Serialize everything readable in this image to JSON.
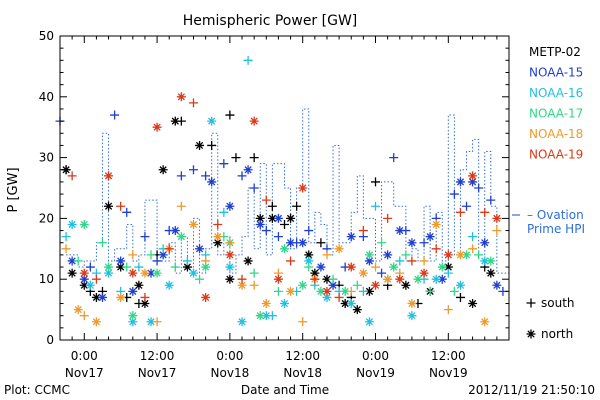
{
  "chart_data": {
    "type": "scatter",
    "title": "Hemispheric Power [GW]",
    "ylabel": "P [GW]",
    "xlabel": "Date and Time",
    "ylim": [
      0,
      50
    ],
    "y_ticks": [
      0,
      10,
      20,
      30,
      40,
      50
    ],
    "x_range_hours": [
      -4,
      70
    ],
    "x_ticks": [
      {
        "hour": 0,
        "time": "0:00",
        "day": "Nov17"
      },
      {
        "hour": 12,
        "time": "12:00",
        "day": "Nov17"
      },
      {
        "hour": 24,
        "time": "0:00",
        "day": "Nov18"
      },
      {
        "hour": 36,
        "time": "12:00",
        "day": "Nov18"
      },
      {
        "hour": 48,
        "time": "0:00",
        "day": "Nov19"
      },
      {
        "hour": 60,
        "time": "12:00",
        "day": "Nov19"
      }
    ],
    "footer_left": "Plot: CCMC",
    "footer_right": "2012/11/19 21:50:10",
    "legend_satellites": [
      {
        "name": "METP-02",
        "color": "#000000"
      },
      {
        "name": "NOAA-15",
        "color": "#1f3fd0"
      },
      {
        "name": "NOAA-16",
        "color": "#22c0e0"
      },
      {
        "name": "NOAA-17",
        "color": "#33d68a"
      },
      {
        "name": "NOAA-18",
        "color": "#f09a2a"
      },
      {
        "name": "NOAA-19",
        "color": "#d83a1a"
      }
    ],
    "ovation": {
      "label_line1": "– Ovation",
      "label_line2": "Prime HPI",
      "color": "#2f6fd8",
      "x": [
        -3,
        -1,
        0,
        2,
        3,
        4,
        5,
        7,
        8,
        9,
        10,
        12,
        13,
        14,
        15,
        16,
        17,
        18,
        19,
        20,
        21,
        22,
        23,
        24,
        25,
        26,
        27,
        28,
        29,
        30,
        31,
        32,
        33,
        34,
        35,
        36,
        37,
        38,
        39,
        40,
        41,
        42,
        43,
        44,
        45,
        46,
        47,
        48,
        49,
        50,
        51,
        52,
        53,
        54,
        55,
        56,
        57,
        58,
        59,
        60,
        61,
        62,
        63,
        64,
        65,
        66,
        67,
        68,
        69
      ],
      "y": [
        14,
        12,
        13,
        16,
        34,
        13,
        15,
        19,
        13,
        14,
        23,
        13,
        13,
        16,
        11,
        17,
        12,
        20,
        11,
        15,
        34,
        14,
        17,
        11,
        14,
        17,
        25,
        15,
        29,
        14,
        29,
        29,
        25,
        15,
        25,
        38,
        16,
        21,
        19,
        14,
        32,
        16,
        16,
        21,
        27,
        20,
        20,
        13,
        26,
        26,
        22,
        22,
        13,
        15,
        13,
        22,
        13,
        21,
        13,
        37,
        14,
        28,
        31,
        33,
        14,
        31,
        22,
        11,
        11
      ]
    },
    "marker_legend": [
      {
        "symbol": "+",
        "label": "south"
      },
      {
        "symbol": "*",
        "label": "north"
      }
    ],
    "series": [
      {
        "name": "METP-02",
        "color": "#000000",
        "south": [
          [
            -3,
            28
          ],
          [
            1,
            8
          ],
          [
            3,
            8
          ],
          [
            7,
            7
          ],
          [
            9,
            6
          ],
          [
            12,
            14
          ],
          [
            16,
            36
          ],
          [
            21,
            32
          ],
          [
            24,
            37
          ],
          [
            25,
            30
          ],
          [
            28,
            30
          ],
          [
            31,
            22
          ],
          [
            33,
            19
          ],
          [
            35,
            22
          ],
          [
            39,
            16
          ],
          [
            42,
            9
          ],
          [
            44,
            7
          ],
          [
            48,
            26
          ],
          [
            50,
            9
          ],
          [
            55,
            6
          ],
          [
            62,
            7
          ],
          [
            66,
            12
          ]
        ],
        "north": [
          [
            -3,
            28
          ],
          [
            -2,
            11
          ],
          [
            0,
            9
          ],
          [
            2,
            7
          ],
          [
            4,
            22
          ],
          [
            6,
            12
          ],
          [
            9,
            9
          ],
          [
            10,
            6
          ],
          [
            13,
            28
          ],
          [
            15,
            36
          ],
          [
            17,
            12
          ],
          [
            19,
            32
          ],
          [
            22,
            16
          ],
          [
            24,
            10
          ],
          [
            27,
            13
          ],
          [
            29,
            20
          ],
          [
            31,
            20
          ],
          [
            34,
            20
          ],
          [
            37,
            14
          ],
          [
            38,
            11
          ],
          [
            40,
            10
          ],
          [
            43,
            6
          ],
          [
            45,
            5
          ],
          [
            47,
            8
          ],
          [
            53,
            9
          ],
          [
            57,
            8
          ],
          [
            60,
            12
          ],
          [
            64,
            6
          ],
          [
            67,
            11
          ]
        ]
      },
      {
        "name": "NOAA-15",
        "color": "#1f3fd0",
        "south": [
          [
            -4,
            36
          ],
          [
            1,
            12
          ],
          [
            5,
            37
          ],
          [
            7,
            21
          ],
          [
            10,
            17
          ],
          [
            12,
            13
          ],
          [
            14,
            18
          ],
          [
            16,
            27
          ],
          [
            18,
            28
          ],
          [
            20,
            27
          ],
          [
            23,
            29
          ],
          [
            26,
            27
          ],
          [
            28,
            25
          ],
          [
            30,
            18
          ],
          [
            32,
            17
          ],
          [
            35,
            16
          ],
          [
            37,
            18
          ],
          [
            40,
            15
          ],
          [
            43,
            12
          ],
          [
            46,
            17
          ],
          [
            49,
            11
          ],
          [
            51,
            30
          ],
          [
            53,
            18
          ],
          [
            56,
            16
          ],
          [
            58,
            20
          ],
          [
            61,
            24
          ],
          [
            63,
            22
          ],
          [
            65,
            25
          ],
          [
            67,
            23
          ],
          [
            69,
            8
          ]
        ],
        "north": [
          [
            -2,
            13
          ],
          [
            0,
            10
          ],
          [
            3,
            7
          ],
          [
            6,
            13
          ],
          [
            8,
            8
          ],
          [
            11,
            11
          ],
          [
            13,
            14
          ],
          [
            15,
            18
          ],
          [
            19,
            15
          ],
          [
            21,
            26
          ],
          [
            24,
            22
          ],
          [
            27,
            28
          ],
          [
            29,
            19
          ],
          [
            32,
            20
          ],
          [
            34,
            16
          ],
          [
            36,
            16
          ],
          [
            39,
            12
          ],
          [
            41,
            9
          ],
          [
            44,
            17
          ],
          [
            47,
            13
          ],
          [
            50,
            14
          ],
          [
            52,
            18
          ],
          [
            54,
            16
          ],
          [
            57,
            17
          ],
          [
            59,
            10
          ],
          [
            62,
            26
          ],
          [
            64,
            26
          ],
          [
            66,
            16
          ],
          [
            68,
            9
          ]
        ]
      },
      {
        "name": "NOAA-16",
        "color": "#22c0e0",
        "south": [
          [
            -3,
            17
          ],
          [
            2,
            11
          ],
          [
            6,
            8
          ],
          [
            9,
            12
          ],
          [
            13,
            15
          ],
          [
            17,
            13
          ],
          [
            20,
            14
          ],
          [
            23,
            21
          ],
          [
            27,
            46
          ],
          [
            31,
            4
          ],
          [
            35,
            8
          ],
          [
            38,
            9
          ],
          [
            42,
            8
          ],
          [
            46,
            8
          ],
          [
            48,
            22
          ],
          [
            52,
            13
          ],
          [
            56,
            10
          ],
          [
            60,
            11
          ],
          [
            64,
            17
          ]
        ],
        "north": [
          [
            -2,
            19
          ],
          [
            1,
            9
          ],
          [
            4,
            11
          ],
          [
            8,
            3
          ],
          [
            11,
            3
          ],
          [
            14,
            9
          ],
          [
            18,
            11
          ],
          [
            21,
            36
          ],
          [
            24,
            12
          ],
          [
            26,
            3
          ],
          [
            30,
            4
          ],
          [
            33,
            6
          ],
          [
            37,
            13
          ],
          [
            40,
            7
          ],
          [
            44,
            6
          ],
          [
            47,
            3
          ],
          [
            50,
            10
          ],
          [
            54,
            4
          ],
          [
            58,
            10
          ],
          [
            62,
            9
          ],
          [
            66,
            13
          ]
        ]
      },
      {
        "name": "NOAA-17",
        "color": "#33d68a",
        "south": [
          [
            -1,
            13
          ],
          [
            3,
            16
          ],
          [
            7,
            12
          ],
          [
            11,
            14
          ],
          [
            15,
            12
          ],
          [
            19,
            10
          ],
          [
            23,
            17
          ],
          [
            28,
            11
          ],
          [
            32,
            8
          ],
          [
            37,
            12
          ],
          [
            41,
            10
          ],
          [
            45,
            9
          ],
          [
            49,
            16
          ],
          [
            53,
            14
          ],
          [
            57,
            8
          ],
          [
            61,
            8
          ],
          [
            65,
            14
          ]
        ],
        "north": [
          [
            0,
            19
          ],
          [
            4,
            12
          ],
          [
            8,
            4
          ],
          [
            12,
            11
          ],
          [
            16,
            17
          ],
          [
            20,
            12
          ],
          [
            24,
            16
          ],
          [
            29,
            4
          ],
          [
            33,
            15
          ],
          [
            36,
            9
          ],
          [
            39,
            8
          ],
          [
            43,
            8
          ],
          [
            47,
            14
          ],
          [
            51,
            12
          ],
          [
            55,
            10
          ],
          [
            59,
            12
          ],
          [
            63,
            14
          ],
          [
            67,
            13
          ]
        ]
      },
      {
        "name": "NOAA-18",
        "color": "#f09a2a",
        "south": [
          [
            -3,
            15
          ],
          [
            0,
            4
          ],
          [
            4,
            27
          ],
          [
            8,
            14
          ],
          [
            12,
            3
          ],
          [
            16,
            22
          ],
          [
            20,
            13
          ],
          [
            24,
            16
          ],
          [
            28,
            9
          ],
          [
            32,
            11
          ],
          [
            36,
            3
          ],
          [
            40,
            14
          ],
          [
            44,
            8
          ],
          [
            48,
            12
          ],
          [
            52,
            11
          ],
          [
            56,
            13
          ],
          [
            60,
            5
          ],
          [
            64,
            15
          ],
          [
            68,
            18
          ]
        ],
        "north": [
          [
            -1,
            5
          ],
          [
            2,
            3
          ],
          [
            6,
            7
          ],
          [
            10,
            11
          ],
          [
            14,
            15
          ],
          [
            18,
            19
          ],
          [
            22,
            17
          ],
          [
            26,
            9
          ],
          [
            30,
            6
          ],
          [
            34,
            8
          ],
          [
            38,
            10
          ],
          [
            42,
            15
          ],
          [
            46,
            11
          ],
          [
            50,
            10
          ],
          [
            54,
            6
          ],
          [
            58,
            19
          ],
          [
            62,
            14
          ],
          [
            66,
            3
          ]
        ]
      },
      {
        "name": "NOAA-19",
        "color": "#d83a1a",
        "south": [
          [
            -2,
            27
          ],
          [
            2,
            10
          ],
          [
            6,
            22
          ],
          [
            10,
            7
          ],
          [
            14,
            15
          ],
          [
            18,
            39
          ],
          [
            22,
            19
          ],
          [
            26,
            10
          ],
          [
            30,
            23
          ],
          [
            34,
            13
          ],
          [
            38,
            10
          ],
          [
            42,
            7
          ],
          [
            46,
            18
          ],
          [
            50,
            20
          ],
          [
            54,
            13
          ],
          [
            58,
            15
          ],
          [
            62,
            21
          ],
          [
            66,
            21
          ]
        ],
        "north": [
          [
            0,
            11
          ],
          [
            4,
            27
          ],
          [
            8,
            11
          ],
          [
            12,
            35
          ],
          [
            16,
            40
          ],
          [
            20,
            7
          ],
          [
            24,
            14
          ],
          [
            28,
            36
          ],
          [
            32,
            10
          ],
          [
            36,
            25
          ],
          [
            40,
            8
          ],
          [
            44,
            12
          ],
          [
            48,
            9
          ],
          [
            52,
            10
          ],
          [
            56,
            11
          ],
          [
            60,
            14
          ],
          [
            64,
            27
          ],
          [
            68,
            20
          ]
        ]
      }
    ]
  }
}
